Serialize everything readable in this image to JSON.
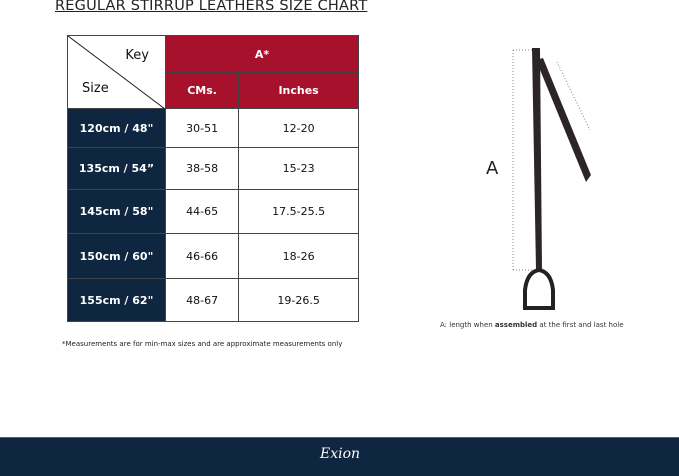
{
  "title": "REGULAR STIRRUP LEATHERS  SIZE CHART",
  "table": {
    "corner_top": "Key",
    "corner_bottom": "Size",
    "group": "A*",
    "columns": [
      "CMs.",
      "Inches"
    ],
    "rows": [
      {
        "size": "120cm / 48\"",
        "cm": "30-51",
        "in": "12-20"
      },
      {
        "size": "135cm / 54”",
        "cm": "38-58",
        "in": "15-23"
      },
      {
        "size": "145cm / 58\"",
        "cm": "44-65",
        "in": "17.5-25.5"
      },
      {
        "size": "150cm / 60\"",
        "cm": "46-66",
        "in": "18-26"
      },
      {
        "size": "155cm / 62\"",
        "cm": "48-67",
        "in": "19-26.5"
      }
    ]
  },
  "note": "*Measurements are for min-max sizes and are approximate measurements only",
  "diagram": {
    "label": "A",
    "caption_pre": "A: length when ",
    "caption_bold": "assembled",
    "caption_post": " at the first and last hole"
  },
  "footer": {
    "logo": "Exion"
  },
  "colors": {
    "header_red": "#a8112b",
    "navy": "#0f2640"
  }
}
